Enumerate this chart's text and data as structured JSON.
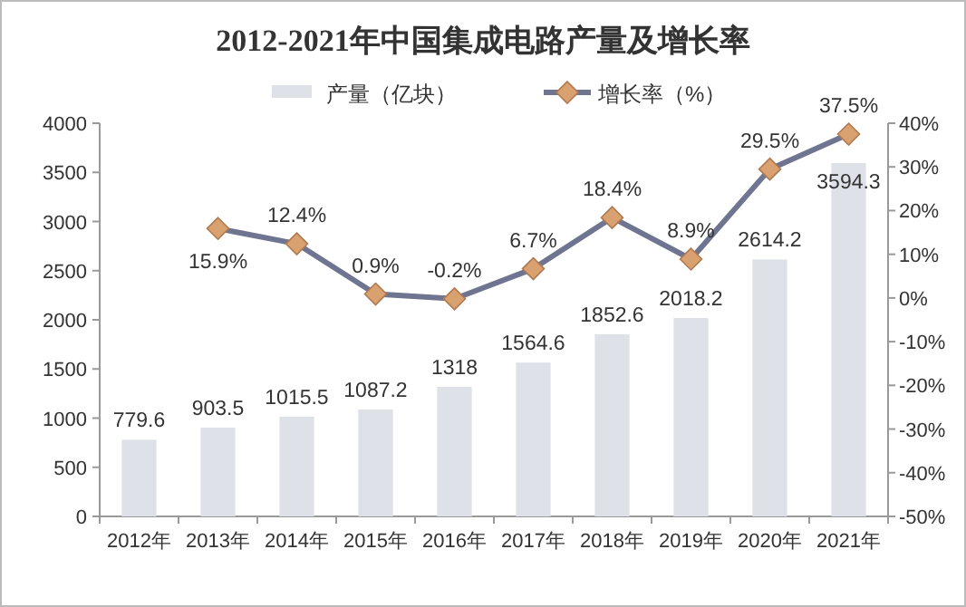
{
  "chart_data": {
    "type": "bar",
    "title": "2012-2021年中国集成电路产量及增长率",
    "categories": [
      "2012年",
      "2013年",
      "2014年",
      "2015年",
      "2016年",
      "2017年",
      "2018年",
      "2019年",
      "2020年",
      "2021年"
    ],
    "series": [
      {
        "name": "产量（亿块）",
        "color": "#dfe1e8",
        "values": [
          779.6,
          903.5,
          1015.5,
          1087.2,
          1318,
          1564.6,
          1852.6,
          2018.2,
          2614.2,
          3594.3
        ]
      },
      {
        "name": "增长率（%）",
        "type": "line",
        "axis": "y2",
        "color": "#6f7590",
        "marker": "diamond",
        "values": [
          null,
          15.9,
          12.4,
          0.9,
          -0.2,
          6.7,
          18.4,
          8.9,
          29.5,
          37.5
        ],
        "value_labels": [
          null,
          "15.9%",
          "12.4%",
          "0.9%",
          "-0.2%",
          "6.7%",
          "18.4%",
          "8.9%",
          "29.5%",
          "37.5%"
        ]
      }
    ],
    "data_labels": true,
    "ylim": [
      0,
      4000
    ],
    "yticks": [
      0,
      500,
      1000,
      1500,
      2000,
      2500,
      3000,
      3500,
      4000
    ],
    "y2lim": [
      -50,
      40
    ],
    "y2ticks": [
      {
        "value": -50,
        "label": "-50%"
      },
      {
        "value": -40,
        "label": "-40%"
      },
      {
        "value": -30,
        "label": "-30%"
      },
      {
        "value": -20,
        "label": "-20%"
      },
      {
        "value": -10,
        "label": "-10%"
      },
      {
        "value": 0,
        "label": "0%"
      },
      {
        "value": 10,
        "label": "10%"
      },
      {
        "value": 20,
        "label": "20%"
      },
      {
        "value": 30,
        "label": "30%"
      },
      {
        "value": 40,
        "label": "40%"
      }
    ],
    "grid": false,
    "legend": "top"
  }
}
